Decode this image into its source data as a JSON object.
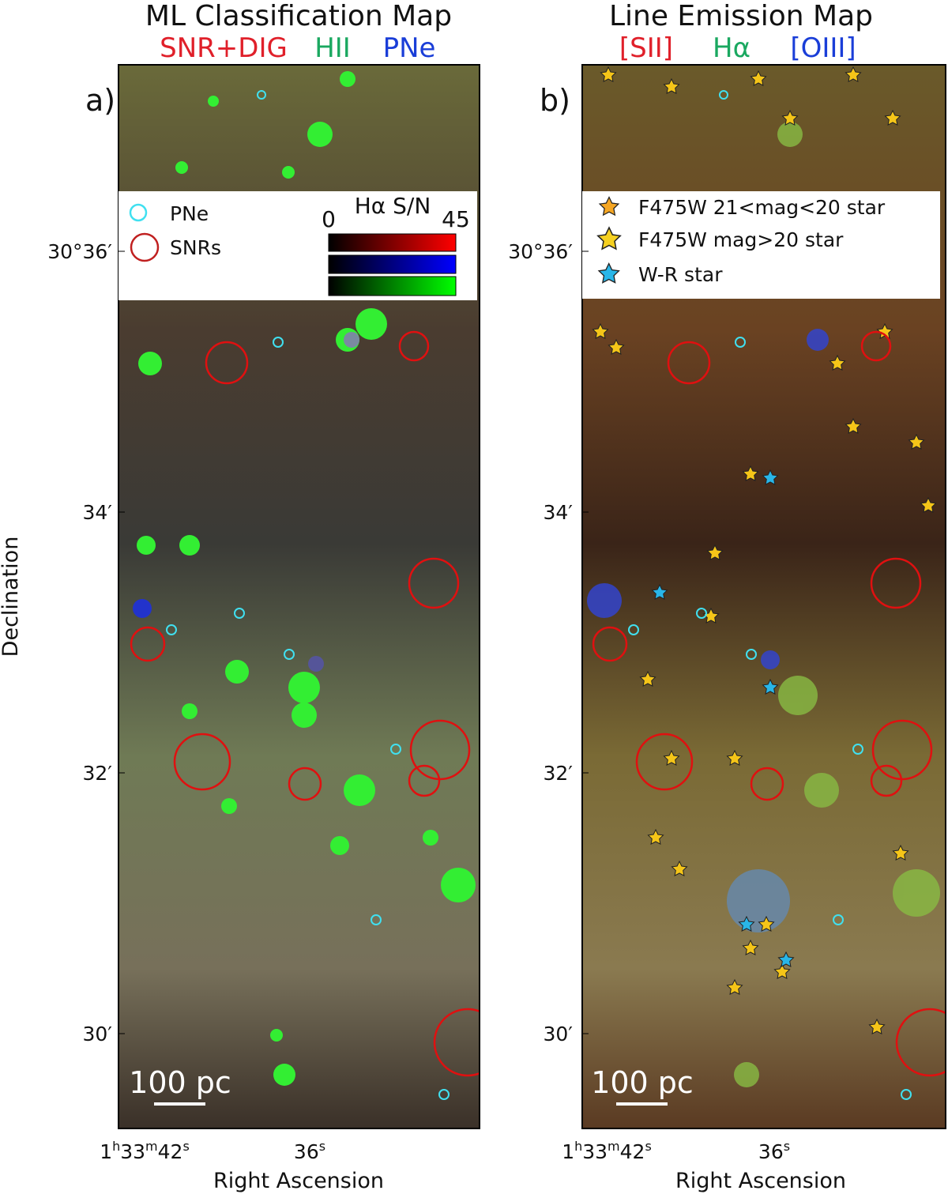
{
  "figure": {
    "panels": [
      {
        "title": "ML Classification Map",
        "channels": [
          "SNR+DIG",
          "HII",
          "PNe"
        ],
        "letter": "a)",
        "legend": [
          "PNe",
          "SNRs"
        ],
        "colorbar": {
          "title": "Hα S/N",
          "min": "0",
          "max": "45"
        },
        "yticks": [
          "30°36′",
          "34′",
          "32′",
          "30′"
        ],
        "xticks": [
          [
            "1",
            "h",
            "33",
            "m",
            "42",
            "s"
          ],
          [
            "36",
            "s"
          ]
        ],
        "xlabel": "Right Ascension",
        "scale": "100 pc"
      },
      {
        "title": "Line Emission Map",
        "channels": [
          "[SII]",
          "Hα",
          "[OIII]"
        ],
        "letter": "b)",
        "legend": [
          "F475W 21<mag<20 star",
          "F475W mag>20 star",
          "W-R star"
        ],
        "yticks": [
          "30°36′",
          "34′",
          "32′",
          "30′"
        ],
        "xticks": [
          [
            "1",
            "h",
            "33",
            "m",
            "42",
            "s"
          ],
          [
            "36",
            "s"
          ]
        ],
        "xlabel": "Right Ascension",
        "scale": "100 pc"
      }
    ],
    "ylabel": "Declination"
  }
}
